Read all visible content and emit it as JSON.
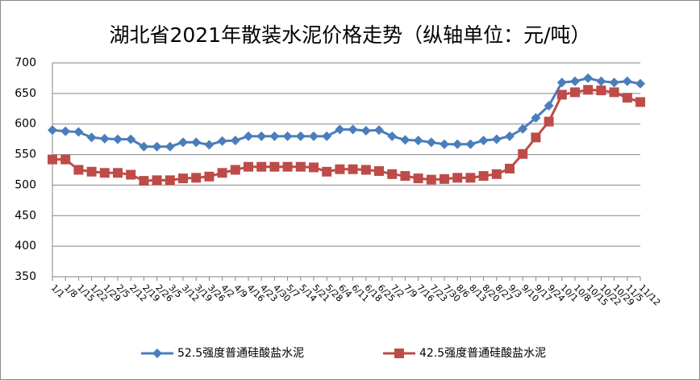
{
  "chart_data": {
    "type": "line",
    "title": "湖北省2021年散装水泥价格走势（纵轴单位：元/吨）",
    "categories": [
      "1/1",
      "1/8",
      "1/15",
      "1/22",
      "1/29",
      "2/5",
      "2/12",
      "2/19",
      "2/26",
      "3/5",
      "3/12",
      "3/19",
      "3/26",
      "4/2",
      "4/9",
      "4/16",
      "4/23",
      "4/30",
      "5/7",
      "5/14",
      "5/21",
      "5/28",
      "6/4",
      "6/11",
      "6/18",
      "6/25",
      "7/2",
      "7/9",
      "7/16",
      "7/23",
      "7/30",
      "8/6",
      "8/13",
      "8/20",
      "8/27",
      "9/3",
      "9/10",
      "9/17",
      "9/24",
      "10/1",
      "10/8",
      "10/15",
      "10/22",
      "10/29",
      "11/5",
      "11/12"
    ],
    "series": [
      {
        "name": "52.5强度普通硅酸盐水泥",
        "color": "#4a7ebb",
        "marker": "diamond",
        "values": [
          590,
          588,
          587,
          578,
          576,
          575,
          575,
          563,
          563,
          563,
          570,
          570,
          566,
          572,
          573,
          580,
          580,
          580,
          580,
          580,
          580,
          580,
          591,
          591,
          589,
          590,
          580,
          574,
          573,
          570,
          567,
          567,
          567,
          573,
          575,
          580,
          592,
          610,
          630,
          668,
          670,
          675,
          670,
          668,
          670,
          666
        ]
      },
      {
        "name": "42.5强度普通硅酸盐水泥",
        "color": "#be4b48",
        "marker": "square",
        "values": [
          542,
          542,
          525,
          522,
          520,
          520,
          517,
          507,
          508,
          508,
          511,
          512,
          514,
          520,
          525,
          530,
          530,
          530,
          530,
          530,
          529,
          522,
          526,
          526,
          525,
          523,
          518,
          515,
          511,
          509,
          510,
          512,
          512,
          515,
          518,
          527,
          551,
          578,
          604,
          648,
          652,
          656,
          655,
          652,
          643,
          636
        ]
      }
    ],
    "ylim": [
      350,
      700
    ],
    "yticks": [
      350,
      400,
      450,
      500,
      550,
      600,
      650,
      700
    ],
    "grid": true,
    "legend": "bottom"
  }
}
